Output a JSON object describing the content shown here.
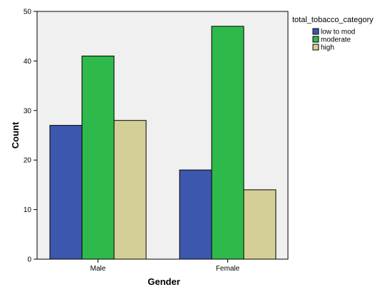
{
  "chart_data": {
    "type": "bar",
    "categories": [
      "Male",
      "Female"
    ],
    "series": [
      {
        "name": "low to mod",
        "values": [
          27,
          18
        ],
        "color": "#3d57ae"
      },
      {
        "name": "moderate",
        "values": [
          41,
          47
        ],
        "color": "#2fb94a"
      },
      {
        "name": "high",
        "values": [
          28,
          14
        ],
        "color": "#d4cf96"
      }
    ],
    "xlabel": "Gender",
    "ylabel": "Count",
    "ylim": [
      0,
      50
    ],
    "yticks": [
      0,
      10,
      20,
      30,
      40,
      50
    ],
    "legend_title": "total_tobacco_category",
    "legend_position": "top-right",
    "grid": false,
    "plot_background": "#f0f0f0"
  }
}
